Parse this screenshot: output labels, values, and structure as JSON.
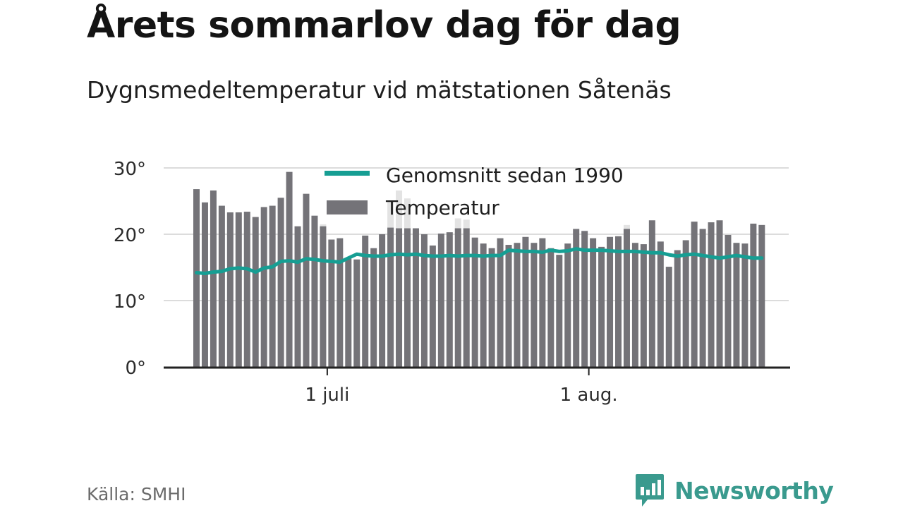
{
  "title": "Årets sommarlov dag för dag",
  "subtitle": "Dygnsmedeltemperatur vid mätstationen Såtenäs",
  "source": "Källa: SMHI",
  "brand": {
    "name": "Newsworthy",
    "icon": "newsworthy-logo-icon",
    "color": "#3a9a8e"
  },
  "chart_data": {
    "type": "bar",
    "x_ticks": [
      {
        "label": "1 juli",
        "index": 16
      },
      {
        "label": "1 aug.",
        "index": 47
      }
    ],
    "ylim": [
      0,
      30
    ],
    "y_ticks": [
      {
        "value": 0,
        "label": "0°"
      },
      {
        "value": 10,
        "label": "10°"
      },
      {
        "value": 20,
        "label": "20°"
      },
      {
        "value": 30,
        "label": "30°"
      }
    ],
    "grid": true,
    "legend_position": "top",
    "series": [
      {
        "name": "Temperatur",
        "type": "bar",
        "color": "#747378",
        "values": [
          26.8,
          24.8,
          26.6,
          24.3,
          23.3,
          23.3,
          23.4,
          22.6,
          24.1,
          24.3,
          25.5,
          29.4,
          21.2,
          26.1,
          22.8,
          21.2,
          19.2,
          19.4,
          16.3,
          16.2,
          19.8,
          17.9,
          20.0,
          21.0,
          20.9,
          20.9,
          20.9,
          20.0,
          18.3,
          20.1,
          20.3,
          20.9,
          20.9,
          19.5,
          18.6,
          17.9,
          19.4,
          18.4,
          18.7,
          19.6,
          18.7,
          19.4,
          17.9,
          16.9,
          18.6,
          20.8,
          20.5,
          19.4,
          18.1,
          19.6,
          19.7,
          20.8,
          18.7,
          18.5,
          22.1,
          18.9,
          15.1,
          17.6,
          19.1,
          21.9,
          20.8,
          21.8,
          22.1,
          19.9,
          18.7,
          18.6,
          21.6,
          21.4
        ]
      },
      {
        "name": "Genomsnitt sedan 1990",
        "type": "line",
        "color": "#169e93",
        "values": [
          14.2,
          14.1,
          14.3,
          14.4,
          14.8,
          14.9,
          14.8,
          14.3,
          14.9,
          15.1,
          15.9,
          16.0,
          15.8,
          16.3,
          16.2,
          16.0,
          15.9,
          15.8,
          16.4,
          17.0,
          16.8,
          16.7,
          16.7,
          16.9,
          17.0,
          16.9,
          17.0,
          16.8,
          16.7,
          16.7,
          16.8,
          16.7,
          16.8,
          16.8,
          16.7,
          16.8,
          16.8,
          17.6,
          17.5,
          17.4,
          17.4,
          17.3,
          17.6,
          17.4,
          17.5,
          17.8,
          17.6,
          17.6,
          17.6,
          17.5,
          17.4,
          17.4,
          17.4,
          17.3,
          17.2,
          17.2,
          16.9,
          16.7,
          16.9,
          17.0,
          16.8,
          16.6,
          16.4,
          16.6,
          16.8,
          16.6,
          16.4,
          16.4
        ]
      },
      {
        "name": "",
        "type": "bar-background",
        "color": "#e3e3e3",
        "values": [
          null,
          null,
          null,
          null,
          null,
          null,
          null,
          null,
          null,
          null,
          null,
          null,
          null,
          null,
          null,
          21.5,
          null,
          null,
          null,
          null,
          null,
          null,
          null,
          25.0,
          26.6,
          25.4,
          null,
          null,
          null,
          null,
          null,
          22.4,
          22.2,
          null,
          null,
          null,
          null,
          null,
          null,
          null,
          null,
          null,
          null,
          null,
          null,
          null,
          null,
          null,
          null,
          null,
          null,
          21.4,
          null,
          null,
          null,
          null,
          null,
          null,
          null,
          null,
          null,
          null,
          null,
          null,
          null,
          null,
          null,
          null
        ]
      }
    ]
  },
  "legend": {
    "line_label": "Genomsnitt sedan 1990",
    "bar_label": "Temperatur"
  }
}
